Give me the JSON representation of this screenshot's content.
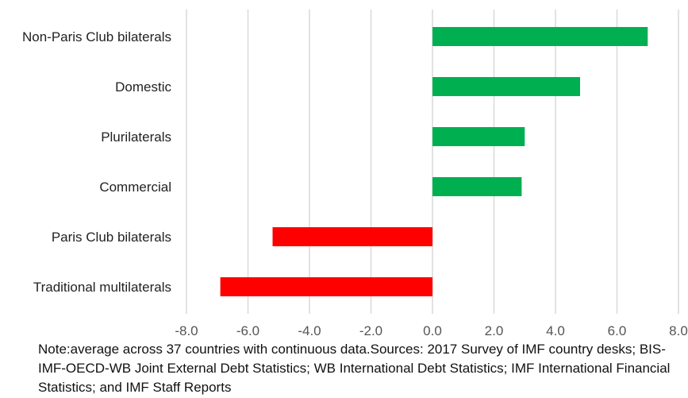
{
  "chart_data": {
    "type": "bar",
    "orientation": "horizontal",
    "categories": [
      "Non-Paris Club bilaterals",
      "Domestic",
      "Plurilaterals",
      "Commercial",
      "Paris Club bilaterals",
      "Traditional multilaterals"
    ],
    "values": [
      7.0,
      4.8,
      3.0,
      2.9,
      -5.2,
      -6.9
    ],
    "colors": [
      "#00b050",
      "#00b050",
      "#00b050",
      "#00b050",
      "#ff0000",
      "#ff0000"
    ],
    "xlim": [
      -8.0,
      8.0
    ],
    "xticks": [
      "-8.0",
      "-6.0",
      "-4.0",
      "-2.0",
      "0.0",
      "2.0",
      "4.0",
      "6.0",
      "8.0"
    ],
    "grid": true,
    "title": "",
    "xlabel": "",
    "ylabel": ""
  },
  "note": "Note:average across 37 countries with continuous data.Sources: 2017 Survey of IMF country desks; BIS-IMF-OECD-WB Joint External Debt Statistics; WB International Debt Statistics; IMF International Financial Statistics; and IMF Staff Reports"
}
